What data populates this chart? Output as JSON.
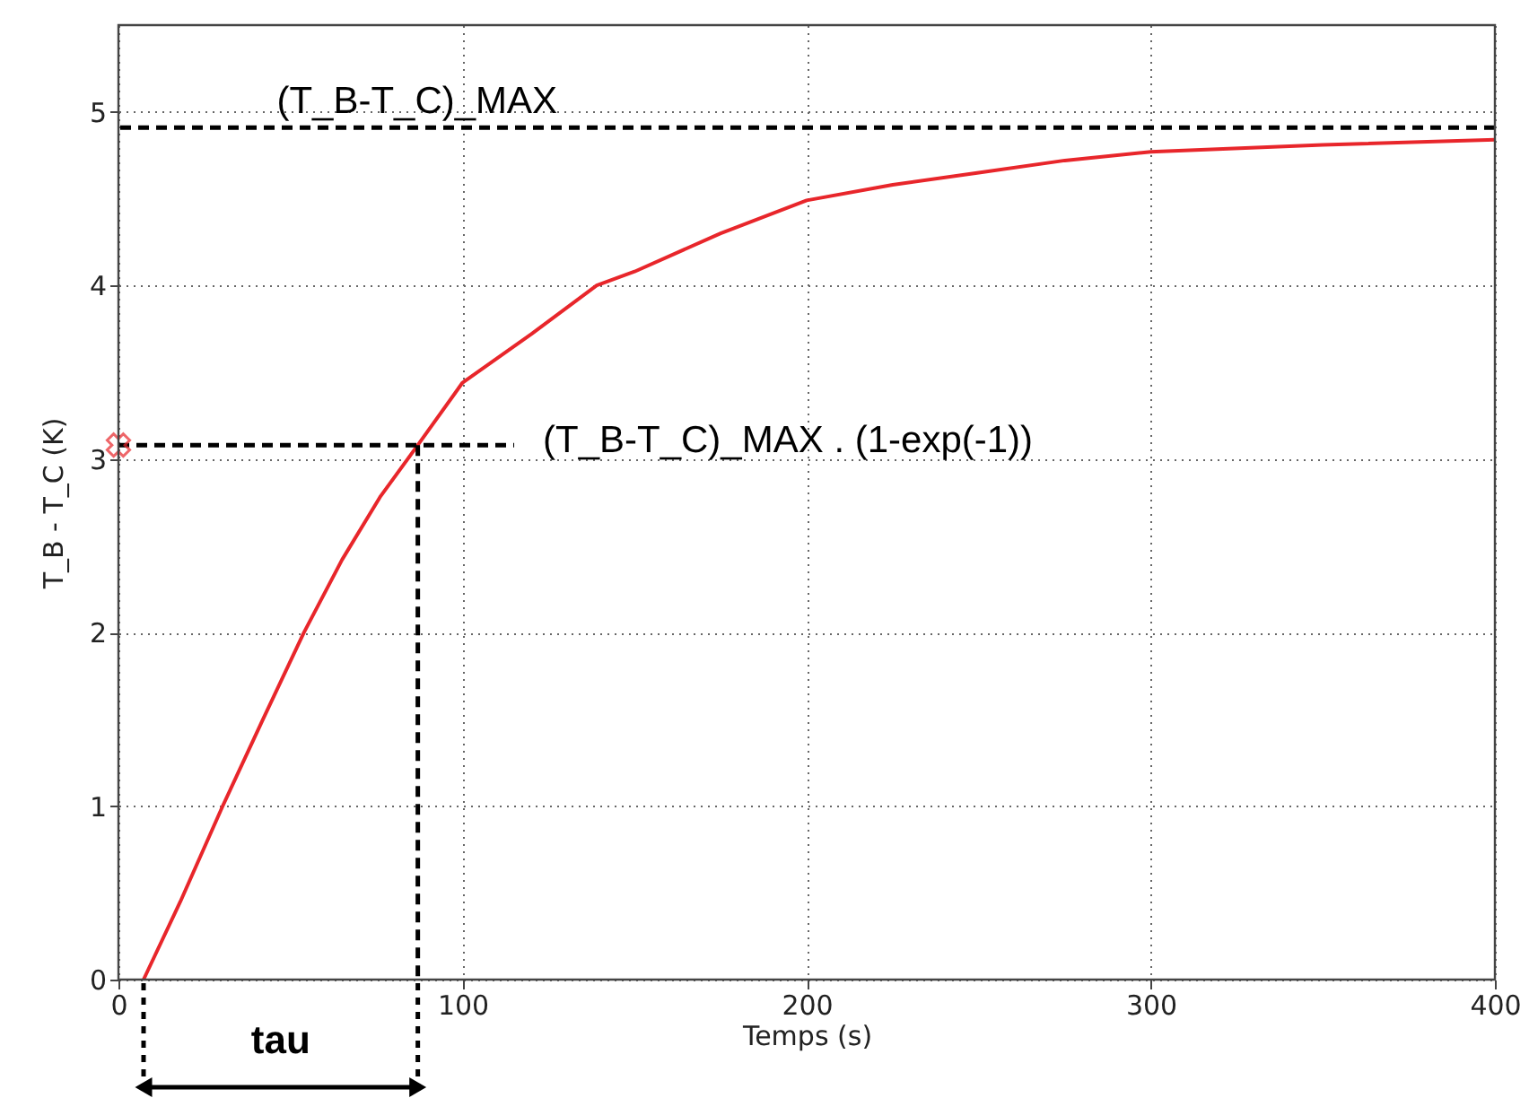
{
  "chart_data": {
    "type": "line",
    "xlabel": "Temps (s)",
    "ylabel": "T_B - T_C (K)",
    "xlim": [
      0,
      400
    ],
    "xticks": [
      0,
      100,
      200,
      300,
      400
    ],
    "ylim": [
      0,
      5.5
    ],
    "yticks": [
      0,
      1,
      2,
      3,
      4,
      5
    ],
    "grid": true,
    "series": [
      {
        "color": "#e8262b",
        "line_style": "solid",
        "x": [
          7.3,
          18,
          30.3,
          42,
          53.9,
          65,
          76,
          87,
          100,
          120,
          139,
          150,
          175,
          200,
          225,
          250,
          275,
          300,
          350,
          400
        ],
        "values": [
          0,
          0.45,
          1,
          1.5,
          2,
          2.42,
          2.78,
          3.08,
          3.44,
          3.72,
          4.0,
          4.08,
          4.3,
          4.49,
          4.58,
          4.65,
          4.72,
          4.77,
          4.81,
          4.84
        ]
      },
      {
        "type": "line",
        "color": "#000000",
        "line_style": "dashed",
        "x": [
          0,
          115
        ],
        "values": [
          3.08,
          3.08
        ]
      },
      {
        "type": "line",
        "color": "#000000",
        "line_style": "dashed",
        "x": [
          87,
          87
        ],
        "values": [
          3.08,
          0
        ]
      },
      {
        "type": "scatter",
        "color": "#e8262b",
        "marker": "cross",
        "x": [
          0
        ],
        "values": [
          3.08
        ]
      }
    ],
    "ref_lines": [
      {
        "axis": "y",
        "value": 4.91,
        "line_style": "dashed",
        "color": "#000000"
      }
    ],
    "annotations": [
      {
        "text": "(T_B-T_C)_MAX",
        "x": 46,
        "y": 4.91
      },
      {
        "text": "(T_B-T_C)_MAX . (1-exp(-1))",
        "x": 115,
        "y": 3.08
      },
      "tau"
    ]
  }
}
